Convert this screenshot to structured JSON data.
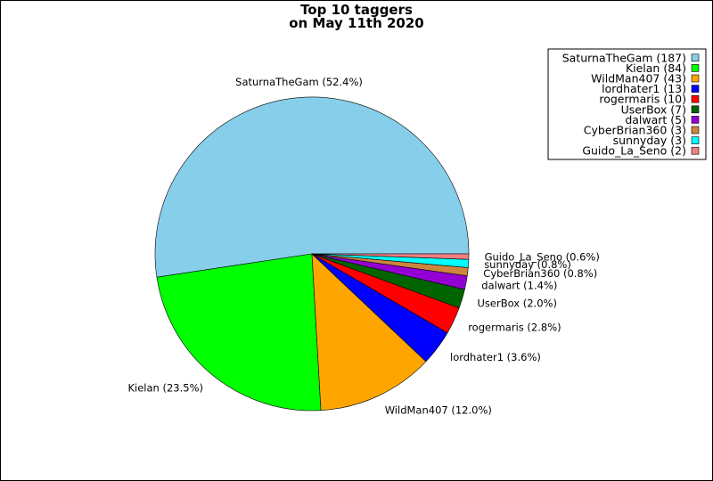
{
  "chart_data": {
    "type": "pie",
    "title": [
      "Top 10 taggers",
      "on May 11th 2020"
    ],
    "legend_position": "top-right",
    "slices": [
      {
        "name": "SaturnaTheGam",
        "count": 187,
        "percent": 52.4,
        "label": "SaturnaTheGam (52.4%)",
        "legend": "SaturnaTheGam (187)",
        "color": "#87ceeb"
      },
      {
        "name": "Kielan",
        "count": 84,
        "percent": 23.5,
        "label": "Kielan (23.5%)",
        "legend": "Kielan (84)",
        "color": "#00ff00"
      },
      {
        "name": "WildMan407",
        "count": 43,
        "percent": 12.0,
        "label": "WildMan407 (12.0%)",
        "legend": "WildMan407 (43)",
        "color": "#ffa500"
      },
      {
        "name": "lordhater1",
        "count": 13,
        "percent": 3.6,
        "label": "lordhater1 (3.6%)",
        "legend": "lordhater1 (13)",
        "color": "#0000ff"
      },
      {
        "name": "rogermaris",
        "count": 10,
        "percent": 2.8,
        "label": "rogermaris (2.8%)",
        "legend": "rogermaris (10)",
        "color": "#ff0000"
      },
      {
        "name": "UserBox",
        "count": 7,
        "percent": 2.0,
        "label": "UserBox (2.0%)",
        "legend": "UserBox (7)",
        "color": "#006400"
      },
      {
        "name": "dalwart",
        "count": 5,
        "percent": 1.4,
        "label": "dalwart (1.4%)",
        "legend": "dalwart (5)",
        "color": "#9400d3"
      },
      {
        "name": "CyberBrian360",
        "count": 3,
        "percent": 0.8,
        "label": "CyberBrian360 (0.8%)",
        "legend": "CyberBrian360 (3)",
        "color": "#cd853f"
      },
      {
        "name": "sunnyday",
        "count": 3,
        "percent": 0.8,
        "label": "sunnyday (0.8%)",
        "legend": "sunnyday (3)",
        "color": "#00ffff"
      },
      {
        "name": "Guido_La_Seno",
        "count": 2,
        "percent": 0.6,
        "label": "Guido_La_Seno (0.6%)",
        "legend": "Guido_La_Seno (2)",
        "color": "#f08080"
      }
    ]
  }
}
